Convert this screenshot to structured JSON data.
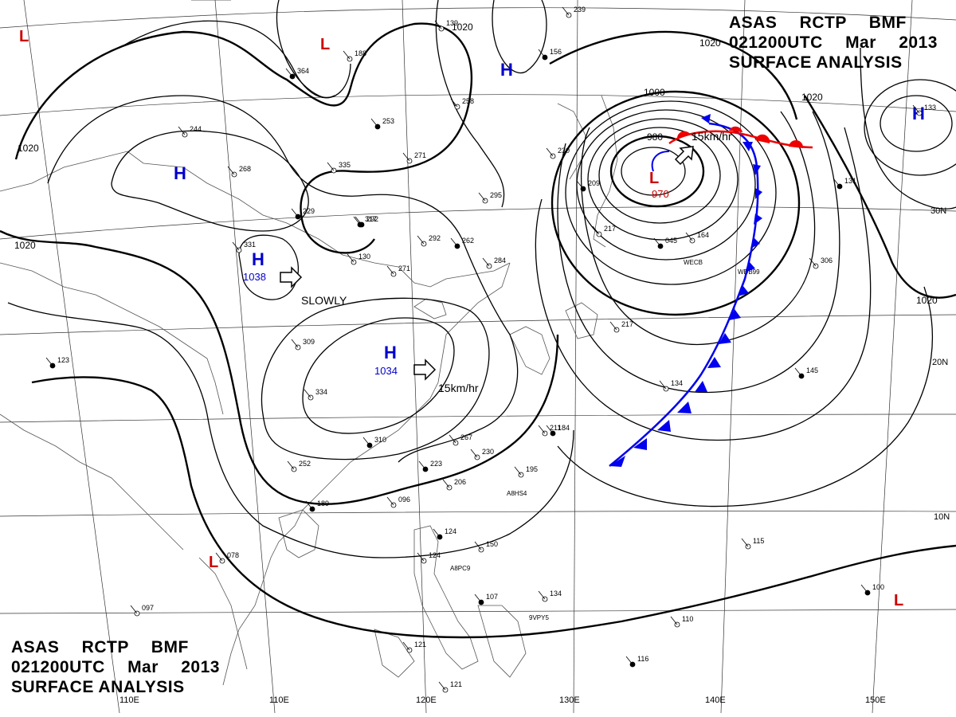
{
  "header": {
    "line1": "ASAS RCTP BMF",
    "line2": "021200UTC Mar 2013",
    "line3": "SURFACE ANALYSIS"
  },
  "longitude_labels": [
    "110E",
    "120E",
    "130E",
    "140E",
    "150E"
  ],
  "latitude_labels": [
    "30N",
    "20N",
    "10N"
  ],
  "isobar_labels": [
    "1020",
    "1020",
    "1020",
    "1020",
    "1020",
    "1020",
    "1000",
    "980",
    "970"
  ],
  "pressure_centers": [
    {
      "type": "H",
      "value": "1038",
      "motion": "SLOWLY",
      "color": "#0000cc"
    },
    {
      "type": "H",
      "value": "1034",
      "motion": "15km/hr",
      "color": "#0000cc"
    },
    {
      "type": "L",
      "value": "970",
      "motion": "15km/hr",
      "color": "#cc0000"
    },
    {
      "type": "H",
      "value": "",
      "motion": "",
      "color": "#0000cc"
    },
    {
      "type": "H",
      "value": "",
      "motion": "",
      "color": "#0000cc"
    },
    {
      "type": "H",
      "value": "",
      "motion": "",
      "color": "#0000cc"
    },
    {
      "type": "L",
      "value": "",
      "motion": "",
      "color": "#cc0000"
    },
    {
      "type": "L",
      "value": "",
      "motion": "",
      "color": "#cc0000"
    },
    {
      "type": "L",
      "value": "",
      "motion": "",
      "color": "#cc0000"
    },
    {
      "type": "L",
      "value": "",
      "motion": "",
      "color": "#cc0000"
    }
  ],
  "fronts": [
    {
      "kind": "cold",
      "color": "#0000ee"
    },
    {
      "kind": "warm",
      "color": "#ee0000"
    }
  ],
  "station_values": [
    "123",
    "309",
    "334",
    "310",
    "267",
    "230",
    "223",
    "206",
    "252",
    "189",
    "096",
    "195",
    "184",
    "211",
    "134",
    "145",
    "078",
    "097",
    "124",
    "121",
    "121",
    "116",
    "110",
    "115",
    "100",
    "150",
    "124",
    "107",
    "134",
    "130",
    "317",
    "271",
    "292",
    "262",
    "295",
    "284",
    "229",
    "268",
    "335",
    "292",
    "271",
    "258",
    "253",
    "244",
    "331",
    "364",
    "188",
    "139",
    "156",
    "239",
    "230",
    "209",
    "217",
    "133",
    "131",
    "306",
    "217",
    "045",
    "164"
  ],
  "ship_ids": [
    "A8HS4",
    "A8PC9",
    "9VPY5",
    "WECB",
    "WDB99"
  ]
}
